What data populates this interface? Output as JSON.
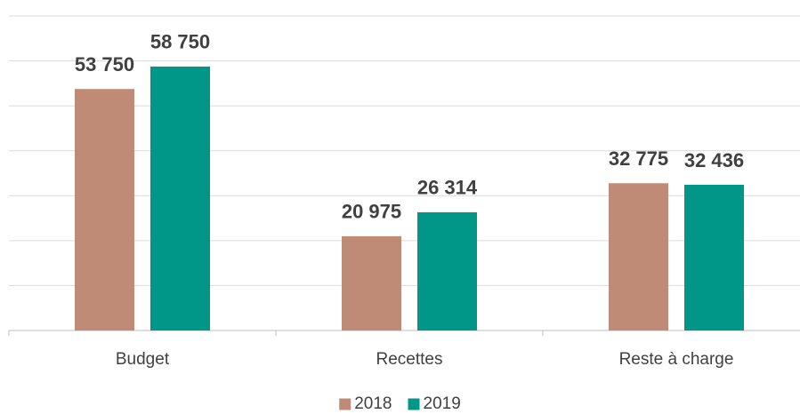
{
  "chart_data": {
    "type": "bar",
    "categories": [
      "Budget",
      "Recettes",
      "Reste à charge"
    ],
    "series": [
      {
        "name": "2018",
        "color": "#bf8b76",
        "values": [
          53750,
          20975,
          32775
        ],
        "value_labels": [
          "53 750",
          "20 975",
          "32 775"
        ]
      },
      {
        "name": "2019",
        "color": "#009688",
        "values": [
          58750,
          26314,
          32436
        ],
        "value_labels": [
          "58 750",
          "26 314",
          "32 436"
        ]
      }
    ],
    "ylim": [
      0,
      70000
    ],
    "yticks": [
      0,
      10000,
      20000,
      30000,
      40000,
      50000,
      60000,
      70000
    ],
    "grid": true,
    "legend": "bottom"
  }
}
